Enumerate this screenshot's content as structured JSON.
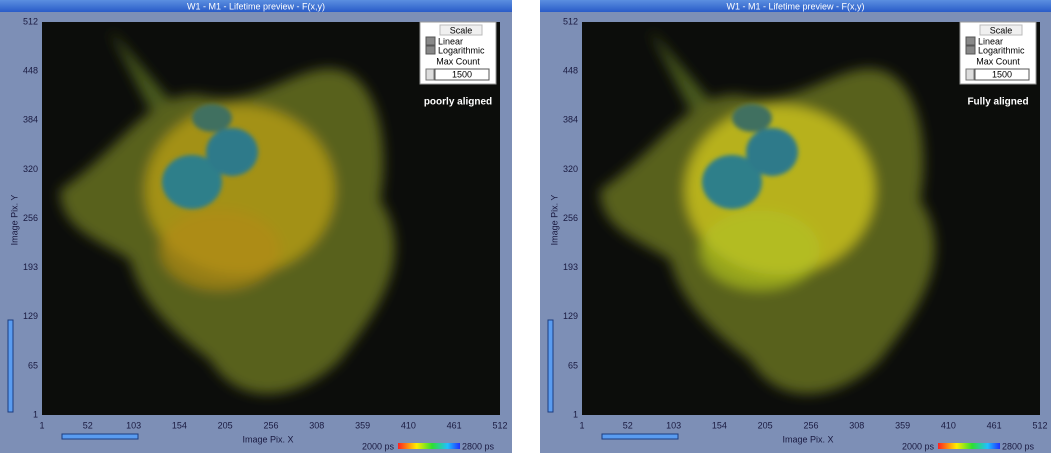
{
  "panels": [
    {
      "title": "W1 - M1 - Lifetime preview  - F(x,y)",
      "y_axis_label": "Image Pix. Y",
      "x_axis_label": "Image Pix. X",
      "y_ticks": [
        512,
        448,
        384,
        320,
        256,
        193,
        129,
        65,
        1
      ],
      "x_ticks": [
        1,
        52,
        103,
        154,
        205,
        256,
        308,
        359,
        410,
        461,
        512
      ],
      "scale": {
        "title": "Scale",
        "options": [
          "Linear",
          "Logarithmic"
        ],
        "max_count_label": "Max Count",
        "max_count": 1500
      },
      "annotation": "poorly aligned",
      "colorbar": {
        "min_label": "2000 ps",
        "max_label": "2800 ps"
      }
    },
    {
      "title": "W1 - M1 - Lifetime preview  - F(x,y)",
      "y_axis_label": "Image Pix. Y",
      "x_axis_label": "Image Pix. X",
      "y_ticks": [
        512,
        448,
        384,
        320,
        256,
        193,
        129,
        65,
        1
      ],
      "x_ticks": [
        1,
        52,
        103,
        154,
        205,
        256,
        308,
        359,
        410,
        461,
        512
      ],
      "scale": {
        "title": "Scale",
        "options": [
          "Linear",
          "Logarithmic"
        ],
        "max_count_label": "Max Count",
        "max_count": 1500
      },
      "annotation": "Fully aligned",
      "colorbar": {
        "min_label": "2000 ps",
        "max_label": "2800 ps"
      }
    }
  ]
}
